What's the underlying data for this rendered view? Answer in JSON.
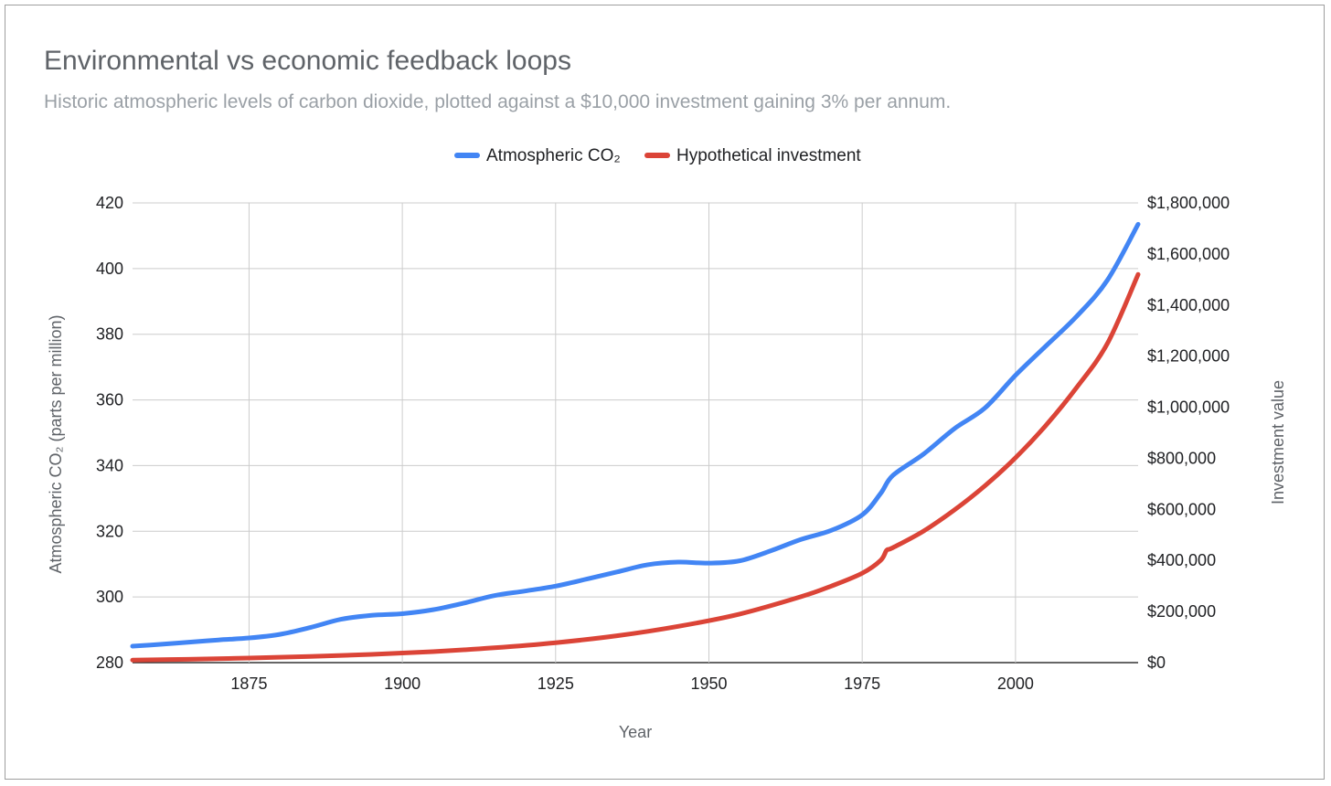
{
  "chart_data": {
    "type": "line",
    "title": "Environmental vs economic feedback loops",
    "subtitle": "Historic atmospheric levels of carbon dioxide, plotted against a $10,000 investment gaining 3% per annum.",
    "xlabel": "Year",
    "ylabel_left": "Atmospheric CO₂ (parts per million)",
    "ylabel_right": "Investment value",
    "xlim": [
      1856,
      2020
    ],
    "x_ticks": [
      1875,
      1900,
      1925,
      1950,
      1975,
      2000
    ],
    "x_tick_labels": [
      "1875",
      "1900",
      "1925",
      "1950",
      "1975",
      "2000"
    ],
    "ylim_left": [
      280,
      420
    ],
    "y_left_ticks": [
      280,
      300,
      320,
      340,
      360,
      380,
      400,
      420
    ],
    "y_left_tick_labels": [
      "280",
      "300",
      "320",
      "340",
      "360",
      "380",
      "400",
      "420"
    ],
    "ylim_right": [
      0,
      1800000
    ],
    "y_right_ticks": [
      0,
      200000,
      400000,
      600000,
      800000,
      1000000,
      1200000,
      1400000,
      1600000,
      1800000
    ],
    "y_right_tick_labels": [
      "$0",
      "$200,000",
      "$400,000",
      "$600,000",
      "$800,000",
      "$1,000,000",
      "$1,200,000",
      "$1,400,000",
      "$1,600,000",
      "$1,800,000"
    ],
    "grid": true,
    "legend_position": "top",
    "series": [
      {
        "name": "Atmospheric CO₂",
        "axis": "left",
        "color": "#4285f4",
        "x": [
          1856,
          1860,
          1865,
          1870,
          1875,
          1880,
          1885,
          1890,
          1895,
          1900,
          1905,
          1910,
          1915,
          1920,
          1925,
          1930,
          1935,
          1940,
          1945,
          1950,
          1955,
          1960,
          1965,
          1970,
          1975,
          1978,
          1980,
          1985,
          1990,
          1995,
          2000,
          2005,
          2010,
          2015,
          2020
        ],
        "values": [
          285,
          285.5,
          286.2,
          286.9,
          287.5,
          288.6,
          290.7,
          293.2,
          294.4,
          294.9,
          296.1,
          298.1,
          300.4,
          301.8,
          303.3,
          305.4,
          307.6,
          309.8,
          310.6,
          310.3,
          311.0,
          314.0,
          317.5,
          320.3,
          325.0,
          331.5,
          337.0,
          343.5,
          351.2,
          357.5,
          367.5,
          376.5,
          385.5,
          396.5,
          413.5
        ]
      },
      {
        "name": "Hypothetical investment",
        "axis": "right",
        "color": "#db4437",
        "x": [
          1856,
          1865,
          1875,
          1885,
          1895,
          1905,
          1915,
          1925,
          1935,
          1945,
          1955,
          1965,
          1970,
          1975,
          1978,
          1979,
          1980,
          1985,
          1990,
          1995,
          2000,
          2005,
          2010,
          2015,
          2020
        ],
        "values": [
          10000,
          13000,
          18000,
          24000,
          32000,
          43000,
          58000,
          78000,
          105000,
          142000,
          190000,
          258000,
          300000,
          350000,
          400000,
          440000,
          450000,
          515000,
          597000,
          692000,
          802000,
          930000,
          1078000,
          1250000,
          1520000
        ]
      }
    ]
  }
}
